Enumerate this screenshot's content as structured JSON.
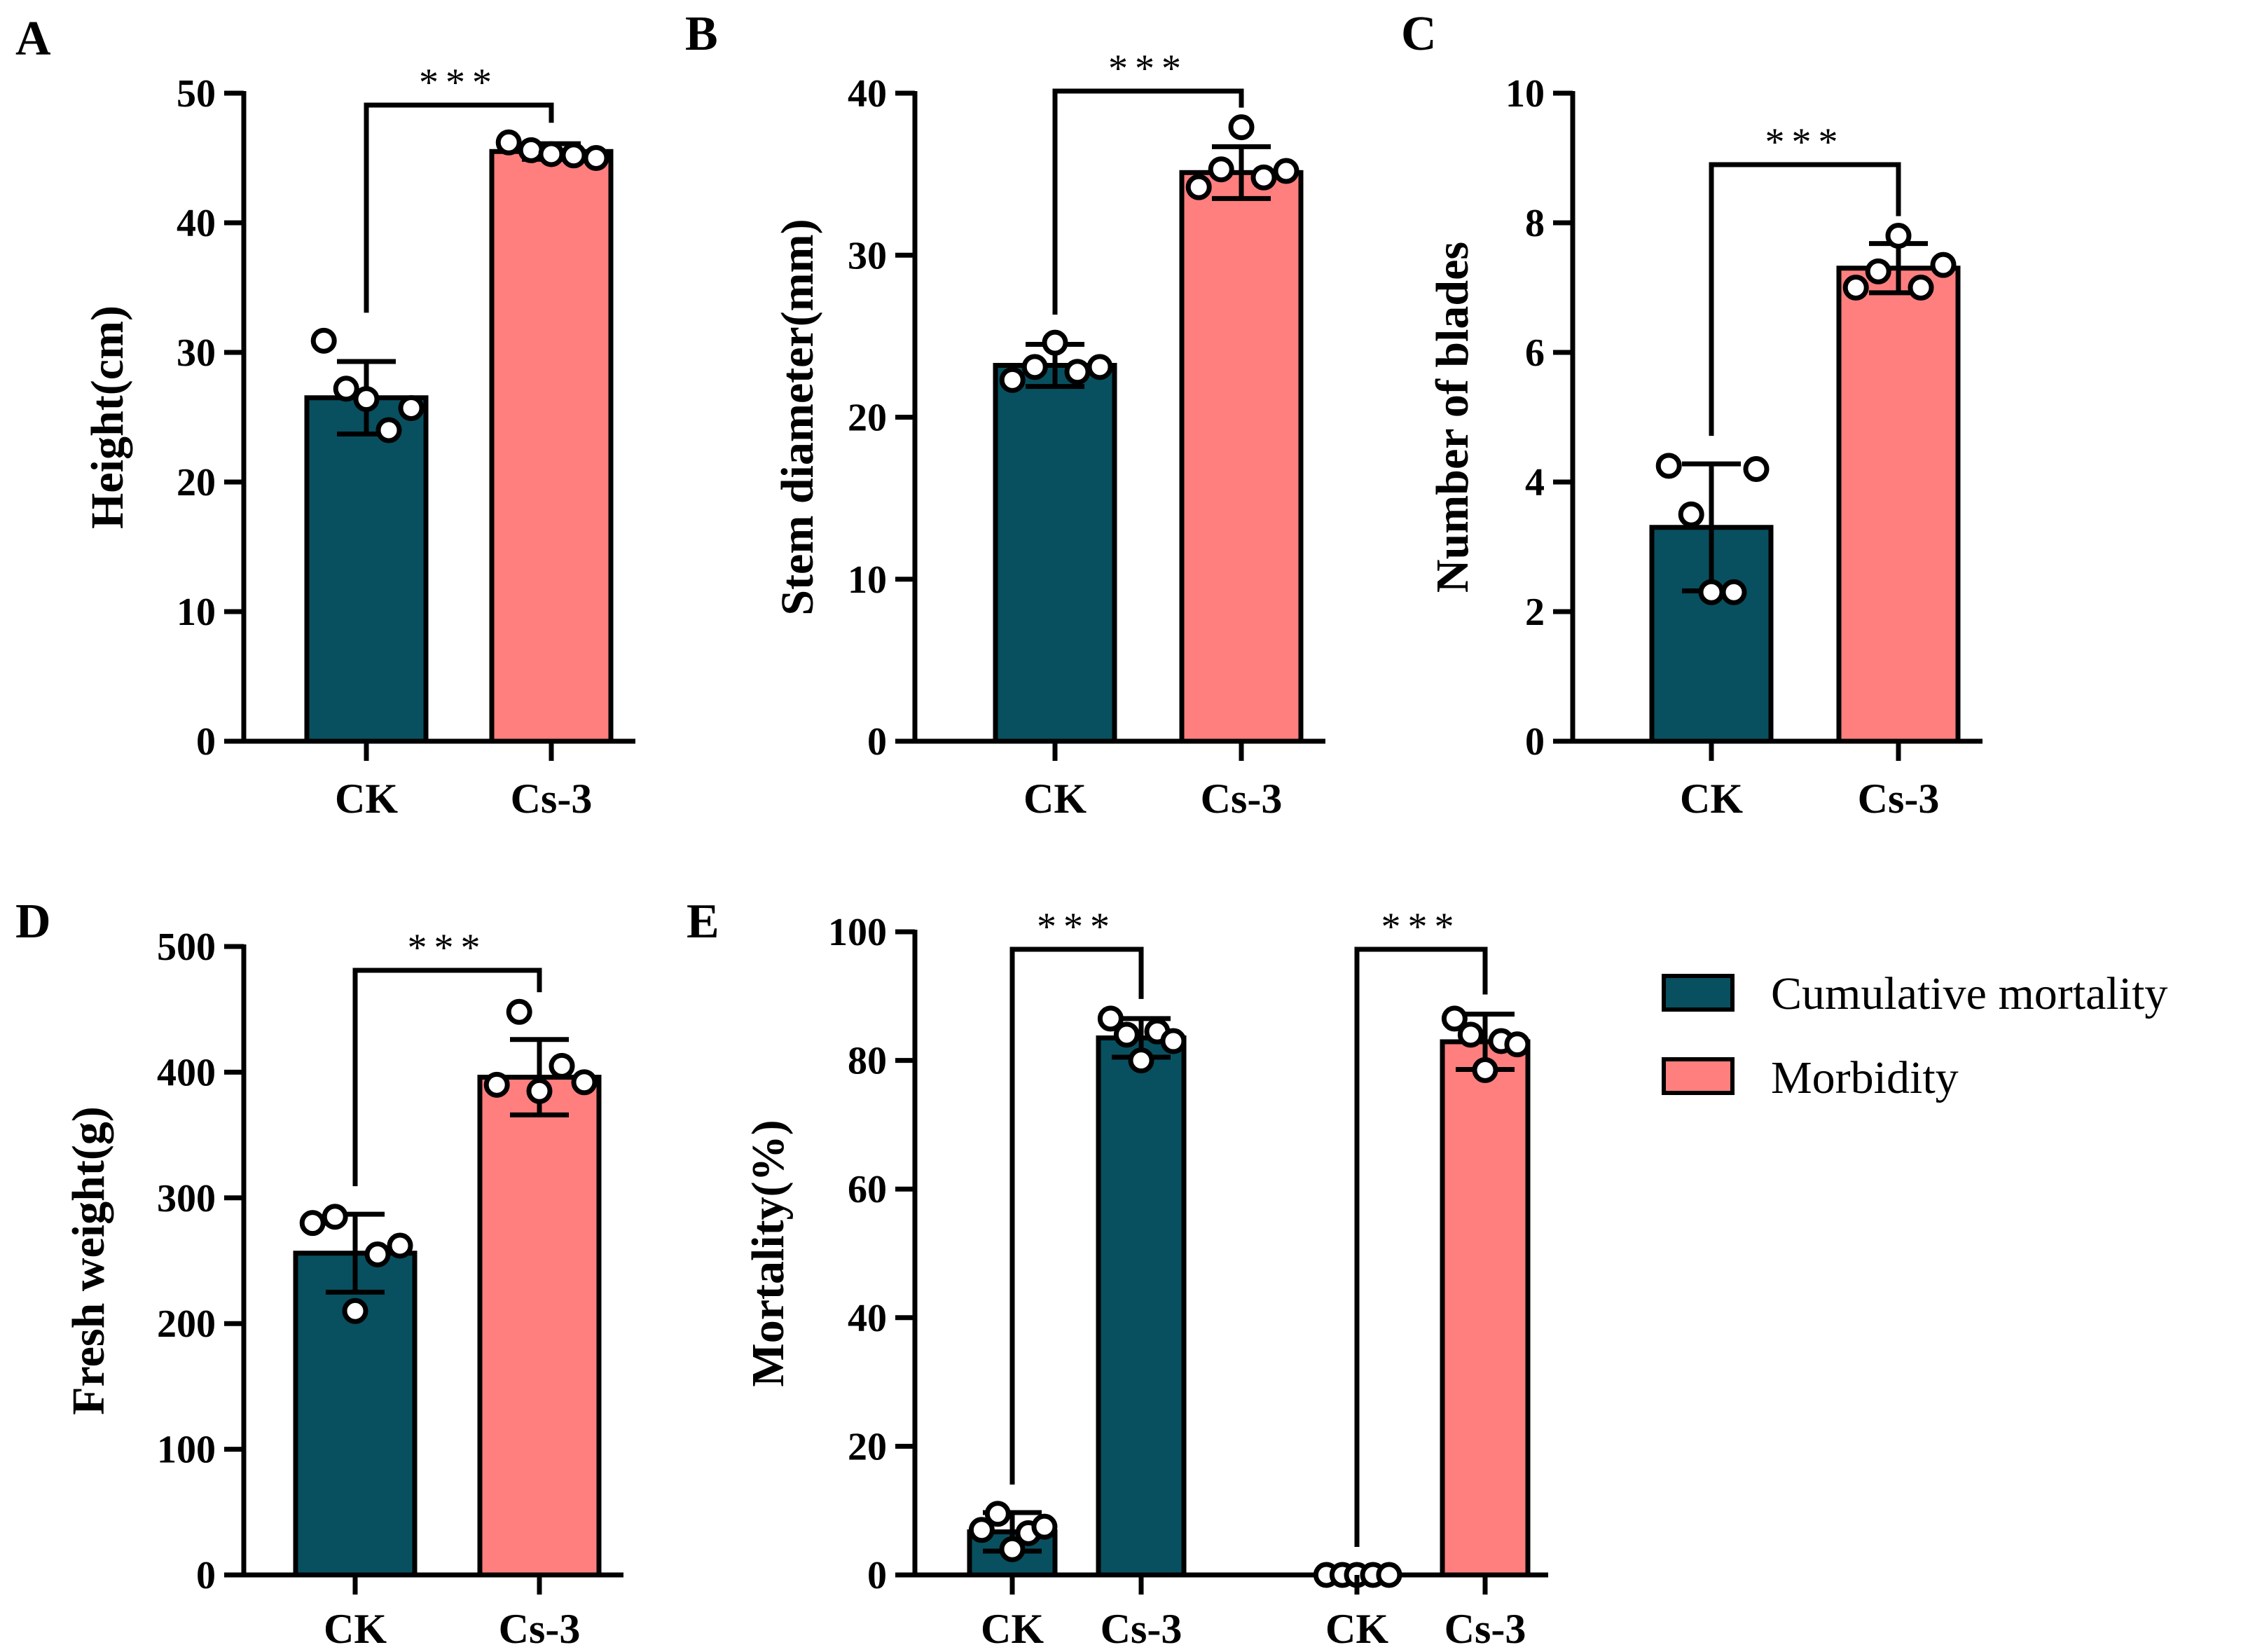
{
  "colors": {
    "ck": "#08505F",
    "cs3": "#FF7F7F",
    "axis": "#000000",
    "point_fill": "#FFFFFF"
  },
  "significance": "***",
  "legend": {
    "items": [
      {
        "label": "Cumulative mortality",
        "color": "#08505F"
      },
      {
        "label": "Morbidity",
        "color": "#FF7F7F"
      }
    ]
  },
  "chart_data": [
    {
      "panel": "A",
      "type": "bar",
      "ylabel": "Height(cm)",
      "ylim": [
        0,
        50
      ],
      "yticks": [
        "0",
        "10",
        "20",
        "30",
        "40",
        "50"
      ],
      "categories": [
        "CK",
        "Cs-3"
      ],
      "bars": [
        {
          "label": "CK",
          "mean": 26.5,
          "sd": 2.8,
          "color": "#08505F",
          "points": [
            30.9,
            27.2,
            26.4,
            24.0,
            25.7
          ]
        },
        {
          "label": "Cs-3",
          "mean": 45.5,
          "sd": 0.6,
          "color": "#FF7F7F",
          "points": [
            46.2,
            45.6,
            45.3,
            45.2,
            45.0
          ]
        }
      ],
      "significance": [
        {
          "from": 0,
          "to": 1,
          "label": "***"
        }
      ]
    },
    {
      "panel": "B",
      "type": "bar",
      "ylabel": "Stem diameter(mm)",
      "ylim": [
        0,
        40
      ],
      "yticks": [
        "0",
        "10",
        "20",
        "30",
        "40"
      ],
      "categories": [
        "CK",
        "Cs-3"
      ],
      "bars": [
        {
          "label": "CK",
          "mean": 23.2,
          "sd": 1.3,
          "color": "#08505F",
          "points": [
            22.3,
            23.1,
            24.6,
            22.8,
            23.1
          ]
        },
        {
          "label": "Cs-3",
          "mean": 35.1,
          "sd": 1.6,
          "color": "#FF7F7F",
          "points": [
            34.2,
            35.3,
            37.9,
            34.8,
            35.2
          ]
        }
      ],
      "significance": [
        {
          "from": 0,
          "to": 1,
          "label": "***"
        }
      ]
    },
    {
      "panel": "C",
      "type": "bar",
      "ylabel": "Number of blades",
      "ylim": [
        0,
        10
      ],
      "yticks": [
        "0",
        "2",
        "4",
        "6",
        "8",
        "10"
      ],
      "categories": [
        "CK",
        "Cs-3"
      ],
      "bars": [
        {
          "label": "CK",
          "mean": 3.3,
          "sd": 0.98,
          "color": "#08505F",
          "points": [
            4.25,
            3.5,
            2.3,
            2.3,
            4.2
          ]
        },
        {
          "label": "Cs-3",
          "mean": 7.3,
          "sd": 0.38,
          "color": "#FF7F7F",
          "points": [
            7.0,
            7.25,
            7.8,
            7.0,
            7.35
          ]
        }
      ],
      "significance": [
        {
          "from": 0,
          "to": 1,
          "label": "***"
        }
      ]
    },
    {
      "panel": "D",
      "type": "bar",
      "ylabel": "Fresh weight(g)",
      "ylim": [
        0,
        500
      ],
      "yticks": [
        "0",
        "100",
        "200",
        "300",
        "400",
        "500"
      ],
      "categories": [
        "CK",
        "Cs-3"
      ],
      "bars": [
        {
          "label": "CK",
          "mean": 256,
          "sd": 31,
          "color": "#08505F",
          "points": [
            280,
            285,
            210,
            255,
            262
          ]
        },
        {
          "label": "Cs-3",
          "mean": 396,
          "sd": 30,
          "color": "#FF7F7F",
          "points": [
            390,
            448,
            385,
            405,
            392
          ]
        }
      ],
      "significance": [
        {
          "from": 0,
          "to": 1,
          "label": "***"
        }
      ]
    },
    {
      "panel": "E",
      "type": "bar",
      "ylabel": "Mortality(%)",
      "ylim": [
        0,
        100
      ],
      "yticks": [
        "0",
        "20",
        "40",
        "60",
        "80",
        "100"
      ],
      "categories": [
        "CK",
        "Cs-3",
        "CK",
        "Cs-3"
      ],
      "bars": [
        {
          "label": "CK",
          "series": "Cumulative mortality",
          "mean": 6.7,
          "sd": 3.0,
          "color": "#08505F",
          "points": [
            7.0,
            9.5,
            4.0,
            6.5,
            7.5
          ]
        },
        {
          "label": "Cs-3",
          "series": "Cumulative mortality",
          "mean": 83.5,
          "sd": 3.0,
          "color": "#08505F",
          "points": [
            86.5,
            84.0,
            80.0,
            84.5,
            83.0
          ]
        },
        {
          "label": "CK",
          "series": "Morbidity",
          "mean": 0,
          "sd": 0,
          "color": "#FF7F7F",
          "points": [
            0,
            0,
            0,
            0,
            0
          ]
        },
        {
          "label": "Cs-3",
          "series": "Morbidity",
          "mean": 82.9,
          "sd": 4.3,
          "color": "#FF7F7F",
          "points": [
            86.5,
            84.0,
            78.5,
            83.0,
            82.5
          ]
        }
      ],
      "significance": [
        {
          "from": 0,
          "to": 1,
          "label": "***"
        },
        {
          "from": 2,
          "to": 3,
          "label": "***"
        }
      ]
    }
  ]
}
